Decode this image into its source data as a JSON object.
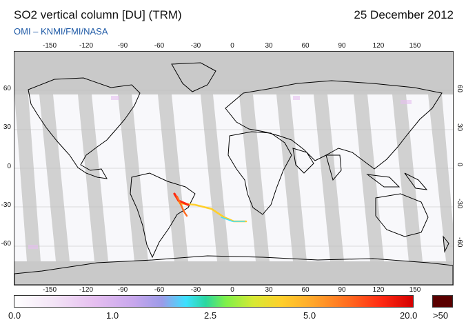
{
  "header": {
    "title": "SO2 vertical column [DU] (TRM)",
    "date": "25 December 2012",
    "credit": "OMI  –  KNMI/FMI/NASA"
  },
  "map": {
    "lon_ticks": [
      "-150",
      "-120",
      "-90",
      "-60",
      "-30",
      "0",
      "30",
      "60",
      "90",
      "120",
      "150"
    ],
    "lat_ticks": [
      "60",
      "30",
      "0",
      "-30",
      "-60"
    ],
    "background_colors": {
      "no_data": "#c9c9c9",
      "low": "#f8f8fb"
    }
  },
  "colorbar": {
    "labels": [
      "0.0",
      "1.0",
      "2.5",
      "5.0",
      "20.0"
    ],
    "overflow_label": ">50",
    "colors": [
      "#ffffff",
      "#e6bff0",
      "#9c9be8",
      "#3de0ff",
      "#7ef04a",
      "#ffcf2b",
      "#ff6a1f",
      "#d40000",
      "#5a0000"
    ]
  }
}
